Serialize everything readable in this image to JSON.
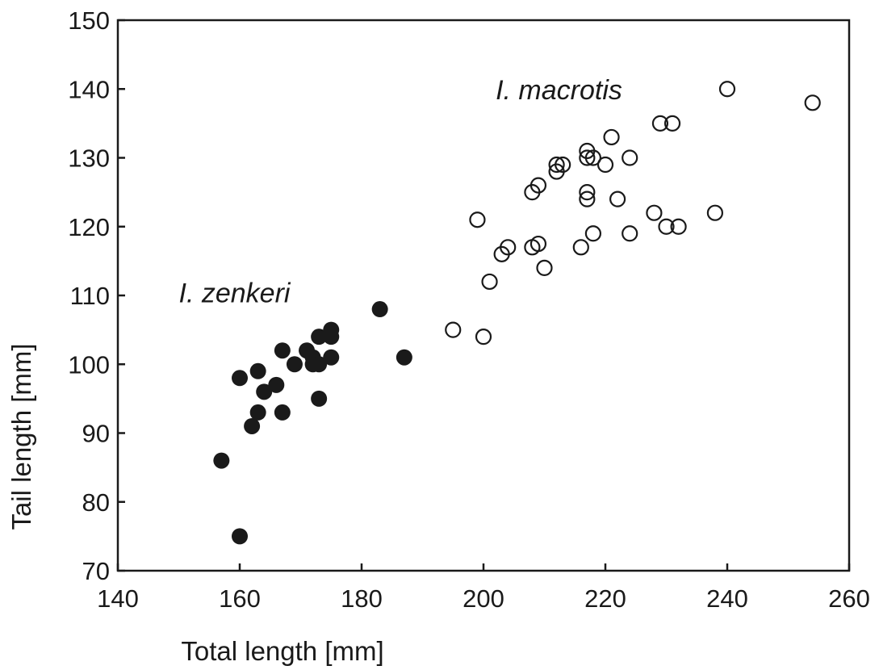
{
  "chart_data": {
    "type": "scatter",
    "title": "",
    "xlabel": "Total length [mm]",
    "ylabel": "Tail length [mm]",
    "xlim": [
      140,
      260
    ],
    "ylim": [
      70,
      150
    ],
    "xticks": [
      140,
      160,
      180,
      200,
      220,
      240,
      260
    ],
    "yticks": [
      70,
      80,
      90,
      100,
      110,
      120,
      130,
      140,
      150
    ],
    "grid": false,
    "annotations": [
      {
        "text": "I. macrotis",
        "x": 202,
        "y": 138.5
      },
      {
        "text": "I. zenkeri",
        "x": 150,
        "y": 109
      }
    ],
    "series": [
      {
        "marker": "filled-circle",
        "color": "#1a1a1a",
        "points": [
          [
            157,
            86
          ],
          [
            160,
            75
          ],
          [
            160,
            98
          ],
          [
            162,
            91
          ],
          [
            163,
            93
          ],
          [
            163,
            99
          ],
          [
            164,
            96
          ],
          [
            166,
            97
          ],
          [
            167,
            93
          ],
          [
            167,
            102
          ],
          [
            169,
            100
          ],
          [
            171,
            102
          ],
          [
            172,
            100
          ],
          [
            172,
            101
          ],
          [
            173,
            95
          ],
          [
            173,
            100
          ],
          [
            173,
            104
          ],
          [
            175,
            101
          ],
          [
            175,
            104
          ],
          [
            175,
            105
          ],
          [
            183,
            108
          ],
          [
            187,
            101
          ]
        ]
      },
      {
        "marker": "open-circle",
        "color": "#1a1a1a",
        "points": [
          [
            195,
            105
          ],
          [
            199,
            121
          ],
          [
            200,
            104
          ],
          [
            201,
            112
          ],
          [
            203,
            116
          ],
          [
            204,
            117
          ],
          [
            208,
            117
          ],
          [
            208,
            125
          ],
          [
            209,
            126
          ],
          [
            209,
            117.5
          ],
          [
            210,
            114
          ],
          [
            212,
            128
          ],
          [
            212,
            129
          ],
          [
            213,
            129
          ],
          [
            216,
            117
          ],
          [
            217,
            124
          ],
          [
            217,
            125
          ],
          [
            217,
            130
          ],
          [
            217,
            131
          ],
          [
            218,
            119
          ],
          [
            218,
            130
          ],
          [
            220,
            129
          ],
          [
            221,
            133
          ],
          [
            222,
            124
          ],
          [
            224,
            119
          ],
          [
            224,
            130
          ],
          [
            228,
            122
          ],
          [
            229,
            135
          ],
          [
            230,
            120
          ],
          [
            231,
            135
          ],
          [
            232,
            120
          ],
          [
            238,
            122
          ],
          [
            240,
            140
          ],
          [
            254,
            138
          ]
        ]
      }
    ]
  }
}
